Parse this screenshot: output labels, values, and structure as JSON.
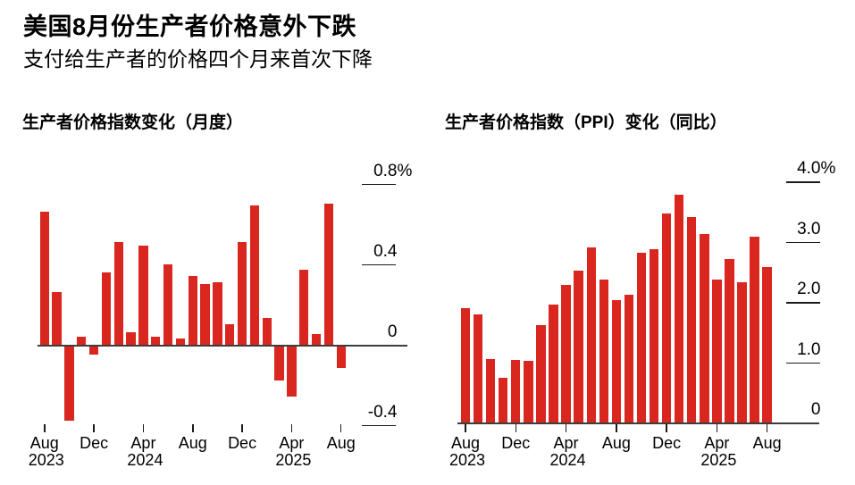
{
  "header": {
    "title": "美国8月份生产者价格意外下跌",
    "subtitle": "支付给生产者的价格四个月来首次下降"
  },
  "colors": {
    "bar": "#d9261f",
    "axis_line": "#3d3d3d",
    "tick": "#1a1a1a",
    "text": "#000000",
    "background": "#ffffff"
  },
  "chart_data": [
    {
      "type": "bar",
      "title": "生产者价格指数变化（月度）",
      "unit": "%",
      "grid": false,
      "legend": null,
      "ylim": [
        -0.48,
        0.82
      ],
      "categories": [
        "Aug 2023",
        "Sep 2023",
        "Oct 2023",
        "Nov 2023",
        "Dec 2023",
        "Jan 2024",
        "Feb 2024",
        "Mar 2024",
        "Apr 2024",
        "May 2024",
        "Jun 2024",
        "Jul 2024",
        "Aug 2024",
        "Sep 2024",
        "Oct 2024",
        "Nov 2024",
        "Dec 2024",
        "Jan 2025",
        "Feb 2025",
        "Mar 2025",
        "Apr 2025",
        "May 2025",
        "Jun 2025",
        "Jul 2025",
        "Aug 2025"
      ],
      "values": [
        0.66,
        0.26,
        -0.37,
        0.04,
        -0.04,
        0.36,
        0.51,
        0.06,
        0.49,
        0.04,
        0.4,
        0.03,
        0.34,
        0.3,
        0.31,
        0.1,
        0.51,
        0.69,
        0.13,
        -0.17,
        -0.25,
        0.37,
        0.05,
        0.7,
        -0.11
      ],
      "yticks": [
        {
          "value": 0.8,
          "label": "0.8",
          "suffix": "%"
        },
        {
          "value": 0.4,
          "label": "0.4"
        },
        {
          "value": 0,
          "label": "0"
        },
        {
          "value": -0.4,
          "label": "-0.4"
        }
      ],
      "xticks": [
        {
          "index": 0,
          "month": "Aug",
          "year": "2023"
        },
        {
          "index": 4,
          "month": "Dec"
        },
        {
          "index": 8,
          "month": "Apr",
          "year": "2024"
        },
        {
          "index": 12,
          "month": "Aug"
        },
        {
          "index": 16,
          "month": "Dec"
        },
        {
          "index": 20,
          "month": "Apr",
          "year": "2025"
        },
        {
          "index": 24,
          "month": "Aug"
        }
      ]
    },
    {
      "type": "bar",
      "title": "生产者价格指数（PPI）变化（同比）",
      "unit": "%",
      "grid": false,
      "legend": null,
      "ylim": [
        0,
        4.1
      ],
      "categories": [
        "Aug 2023",
        "Sep 2023",
        "Oct 2023",
        "Nov 2023",
        "Dec 2023",
        "Jan 2024",
        "Feb 2024",
        "Mar 2024",
        "Apr 2024",
        "May 2024",
        "Jun 2024",
        "Jul 2024",
        "Aug 2024",
        "Sep 2024",
        "Oct 2024",
        "Nov 2024",
        "Dec 2024",
        "Jan 2025",
        "Feb 2025",
        "Mar 2025",
        "Apr 2025",
        "May 2025",
        "Jun 2025",
        "Jul 2025",
        "Aug 2025"
      ],
      "values": [
        1.89,
        1.79,
        1.05,
        0.74,
        1.03,
        1.02,
        1.61,
        1.95,
        2.28,
        2.52,
        2.91,
        2.37,
        2.03,
        2.12,
        2.81,
        2.88,
        3.46,
        3.78,
        3.41,
        3.13,
        2.37,
        2.71,
        2.33,
        3.08,
        2.58
      ],
      "yticks": [
        {
          "value": 4.0,
          "label": "4.0",
          "suffix": "%"
        },
        {
          "value": 3.0,
          "label": "3.0"
        },
        {
          "value": 2.0,
          "label": "2.0"
        },
        {
          "value": 1.0,
          "label": "1.0"
        },
        {
          "value": 0,
          "label": "0"
        }
      ],
      "xticks": [
        {
          "index": 0,
          "month": "Aug",
          "year": "2023"
        },
        {
          "index": 4,
          "month": "Dec"
        },
        {
          "index": 8,
          "month": "Apr",
          "year": "2024"
        },
        {
          "index": 12,
          "month": "Aug"
        },
        {
          "index": 16,
          "month": "Dec"
        },
        {
          "index": 20,
          "month": "Apr",
          "year": "2025"
        },
        {
          "index": 24,
          "month": "Aug"
        }
      ]
    }
  ]
}
